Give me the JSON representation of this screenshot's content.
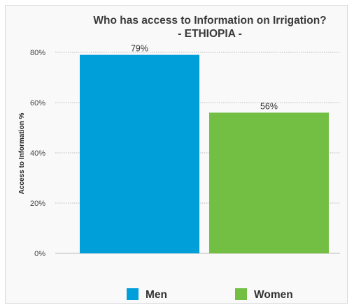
{
  "chart_data": {
    "type": "bar",
    "title": "Who has access to Information on Irrigation?",
    "subtitle": "- ETHIOPIA -",
    "ylabel": "Access to Information %",
    "xlabel": "",
    "categories": [
      "Men",
      "Women"
    ],
    "values": [
      79,
      56
    ],
    "data_labels": [
      "79%",
      "56%"
    ],
    "colors": [
      "#009fda",
      "#72bf44"
    ],
    "ylim": [
      0,
      80
    ],
    "yticks": [
      0,
      20,
      40,
      60,
      80
    ],
    "ytick_labels": [
      "0%",
      "20%",
      "40%",
      "60%",
      "80%"
    ],
    "grid": true,
    "legend": {
      "position": "bottom",
      "items": [
        {
          "label": "Men",
          "color": "#009fda"
        },
        {
          "label": "Women",
          "color": "#72bf44"
        }
      ]
    }
  }
}
